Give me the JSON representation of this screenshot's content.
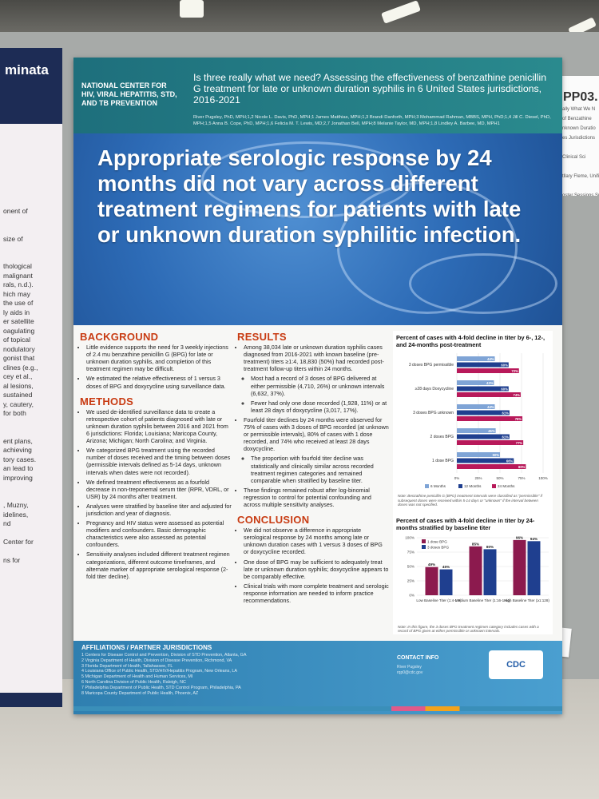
{
  "left_poster": {
    "header": "minata",
    "fragments": [
      "onent of",
      "",
      "",
      "size of",
      "",
      "",
      "thological",
      "malignant",
      "rals, n.d.).",
      "hich may",
      "the use of",
      "ly aids in",
      "er satellite",
      "oagulating",
      "of topical",
      "nodulatory",
      "gonist that",
      "clines (e.g.,",
      "cey et al.,",
      "al lesions,",
      "sustained",
      "y, cautery,",
      "for both",
      "",
      "",
      "ent plans,",
      "achieving",
      "tory cases.",
      "an lead to",
      "improving",
      "",
      "",
      ", Muzny,",
      "idelines,",
      "nd",
      "",
      "Center for",
      "",
      "ns for"
    ]
  },
  "right_poster": {
    "code": "PP03.",
    "fragments": [
      "ally What We N",
      "of Benzathine",
      "nknown Duratio",
      "es Jurisdictions",
      "",
      "Clinical Sci",
      "",
      "tllary Fleme, Unifited",
      "",
      "oster Sessions Supp"
    ]
  },
  "poster": {
    "center_name": "NATIONAL CENTER FOR HIV, VIRAL HEPATITIS, STD, AND TB PREVENTION",
    "title": "Is three really what we need? Assessing the effectiveness of benzathine penicillin G treatment for late or unknown duration syphilis in 6 United States jurisdictions, 2016-2021",
    "authors": "River Pugsley, PhD, MPH;1,2 Nicole L. Davis, PhD, MPH;1 James Matthias, MPH;1,3 Brandi Danforth, MPH;3 Mohammad Rahman, MBBS, MPH, PhD;1,4 Jill C. Diesel, PhD, MPH;1,5 Anna B. Cope, PhD, MPH;1,6 Felicia M. T. Lewis, MD;2,7 Jonathan Bell, MPH;8 Melanie Taylor, MD, MPH;1,8 Lindley A. Barbee, MD, MPH1",
    "hero": "Appropriate serologic response by 24 months did not vary across different treatment regimens for patients with late or unknown duration syphilitic infection.",
    "background": {
      "heading": "BACKGROUND",
      "bullets": [
        "Little evidence supports the need for 3 weekly injections of 2.4 mu benzathine penicillin G (BPG) for late or unknown duration syphilis, and completion of this treatment regimen may be difficult.",
        "We estimated the relative effectiveness of 1 versus 3 doses of BPG and doxycycline using surveillance data."
      ]
    },
    "methods": {
      "heading": "METHODS",
      "bullets": [
        "We used de-identified surveillance data to create a retrospective cohort of patients diagnosed with late or unknown duration syphilis between 2016 and 2021 from 6 jurisdictions: Florida; Louisiana; Maricopa County, Arizona; Michigan; North Carolina; and Virginia.",
        "We categorized BPG treatment using the recorded number of doses received and the timing between doses (permissible intervals defined as 5-14 days, unknown intervals when dates were not recorded).",
        "We defined treatment effectiveness as a fourfold decrease in non-treponemal serum titer (RPR, VDRL, or USR) by 24 months after treatment.",
        "Analyses were stratified by baseline titer and adjusted for jurisdiction and year of diagnosis.",
        "Pregnancy and HIV status were assessed as potential modifiers and confounders. Basic demographic characteristics were also assessed as potential confounders.",
        "Sensitivity analyses included different treatment regimen categorizations, different outcome timeframes, and alternate marker of appropriate serological response (2-fold titer decline)."
      ]
    },
    "results": {
      "heading": "RESULTS",
      "b1": "Among 38,034 late or unknown duration syphilis cases diagnosed from 2016-2021 with known baseline (pre-treatment) titers ≥1:4, 18,830 (50%) had recorded post-treatment follow-up titers within 24 months.",
      "b1_sub1": "Most had a record of 3 doses of BPG delivered at either permissible (4,710, 26%) or unknown intervals (6,632, 37%).",
      "b1_sub2": "Fewer had only one dose recorded (1,928, 11%) or at least 28 days of doxycycline (3,017, 17%).",
      "b2": "Fourfold titer declines by 24 months were observed for 75% of cases with 3 doses of BPG recorded (at unknown or permissible intervals), 80% of cases with 1 dose recorded, and 74% who received at least 28 days doxycycline.",
      "b2_sub1": "The proportion with fourfold titer decline was statistically and clinically similar across recorded treatment regimen categories and remained comparable when stratified by baseline titer.",
      "b3": "These findings remained robust after log-binomial regression to control for potential confounding and across multiple sensitivity analyses."
    },
    "conclusion": {
      "heading": "CONCLUSION",
      "bullets": [
        "We did not observe a difference in appropriate serological response by 24 months among late or unknown duration cases with 1 versus 3 doses of BPG or doxycycline recorded.",
        "One dose of BPG may be sufficient to adequately treat late or unknown duration syphilis; doxycycline appears to be comparably effective.",
        "Clinical trials with more complete treatment and serologic response information are needed to inform practice recommendations."
      ]
    },
    "footer": {
      "aff_title": "AFFILIATIONS / PARTNER JURISDICTIONS",
      "aff_lines": [
        "1 Centers for Disease Control and Prevention, Division of STD Prevention, Atlanta, GA",
        "2 Virginia Department of Health, Division of Disease Prevention, Richmond, VA",
        "3 Florida Department of Health, Tallahassee, FL",
        "4 Louisiana Office of Public Health, STD/HIV/Hepatitis Program, New Orleans, LA",
        "5 Michigan Department of Health and Human Services, MI",
        "6 North Carolina Division of Public Health, Raleigh, NC",
        "7 Philadelphia Department of Public Health, STD Control Program, Philadelphia, PA",
        "8 Maricopa County Department of Public Health, Phoenix, AZ"
      ],
      "contact_title": "CONTACT INFO",
      "contact_name": "River Pugsley",
      "contact_email": "rqp0@cdc.gov",
      "logo": "CDC"
    }
  },
  "chart_data": [
    {
      "type": "bar",
      "orientation": "horizontal",
      "title": "Percent of cases with 4-fold decline in titer by 6-, 12-, and 24-months post-treatment",
      "categories": [
        "3 doses BPG permissible",
        "≥28 days Doxycycline",
        "3 doses BPG unknown",
        "2 doses BPG",
        "1 dose BPG"
      ],
      "series": [
        {
          "name": "6 Months",
          "values": [
            44,
            43,
            44,
            45,
            50
          ],
          "color": "#7fa4d6"
        },
        {
          "name": "12 Months",
          "values": [
            60,
            60,
            61,
            61,
            66
          ],
          "color": "#1f3f8f"
        },
        {
          "name": "24 Months",
          "values": [
            72,
            74,
            76,
            77,
            80
          ],
          "color": "#b8195a"
        }
      ],
      "xlim": [
        0,
        100
      ],
      "xticks": [
        "0%",
        "25%",
        "50%",
        "75%",
        "100%"
      ],
      "note": "Note: Benzathine penicillin G (BPG) treatment intervals were classified as \"permissible\" if subsequent doses were received within 5-14 days or \"unknown\" if the interval between doses was not specified."
    },
    {
      "type": "bar",
      "title": "Percent of cases with 4-fold decline in titer by 24-months stratified by baseline titer",
      "categories": [
        "Low Baseline Titer (1:4-1:8)",
        "Medium Baseline Titer (1:16-1:64)",
        "High Baseline Titer (≥1:128)"
      ],
      "series": [
        {
          "name": "1 dose BPG",
          "values": [
            49,
            85,
            96
          ],
          "color": "#8c1a4e"
        },
        {
          "name": "3 doses BPG",
          "values": [
            45,
            80,
            94
          ],
          "color": "#1f3f8f"
        }
      ],
      "ylim": [
        0,
        100
      ],
      "yticks": [
        "0%",
        "25%",
        "50%",
        "75%",
        "100%"
      ],
      "note": "Note: In this figure, the 3 doses BPG treatment regimen category includes cases with a record of BPG given at either permissible or unknown intervals."
    }
  ]
}
